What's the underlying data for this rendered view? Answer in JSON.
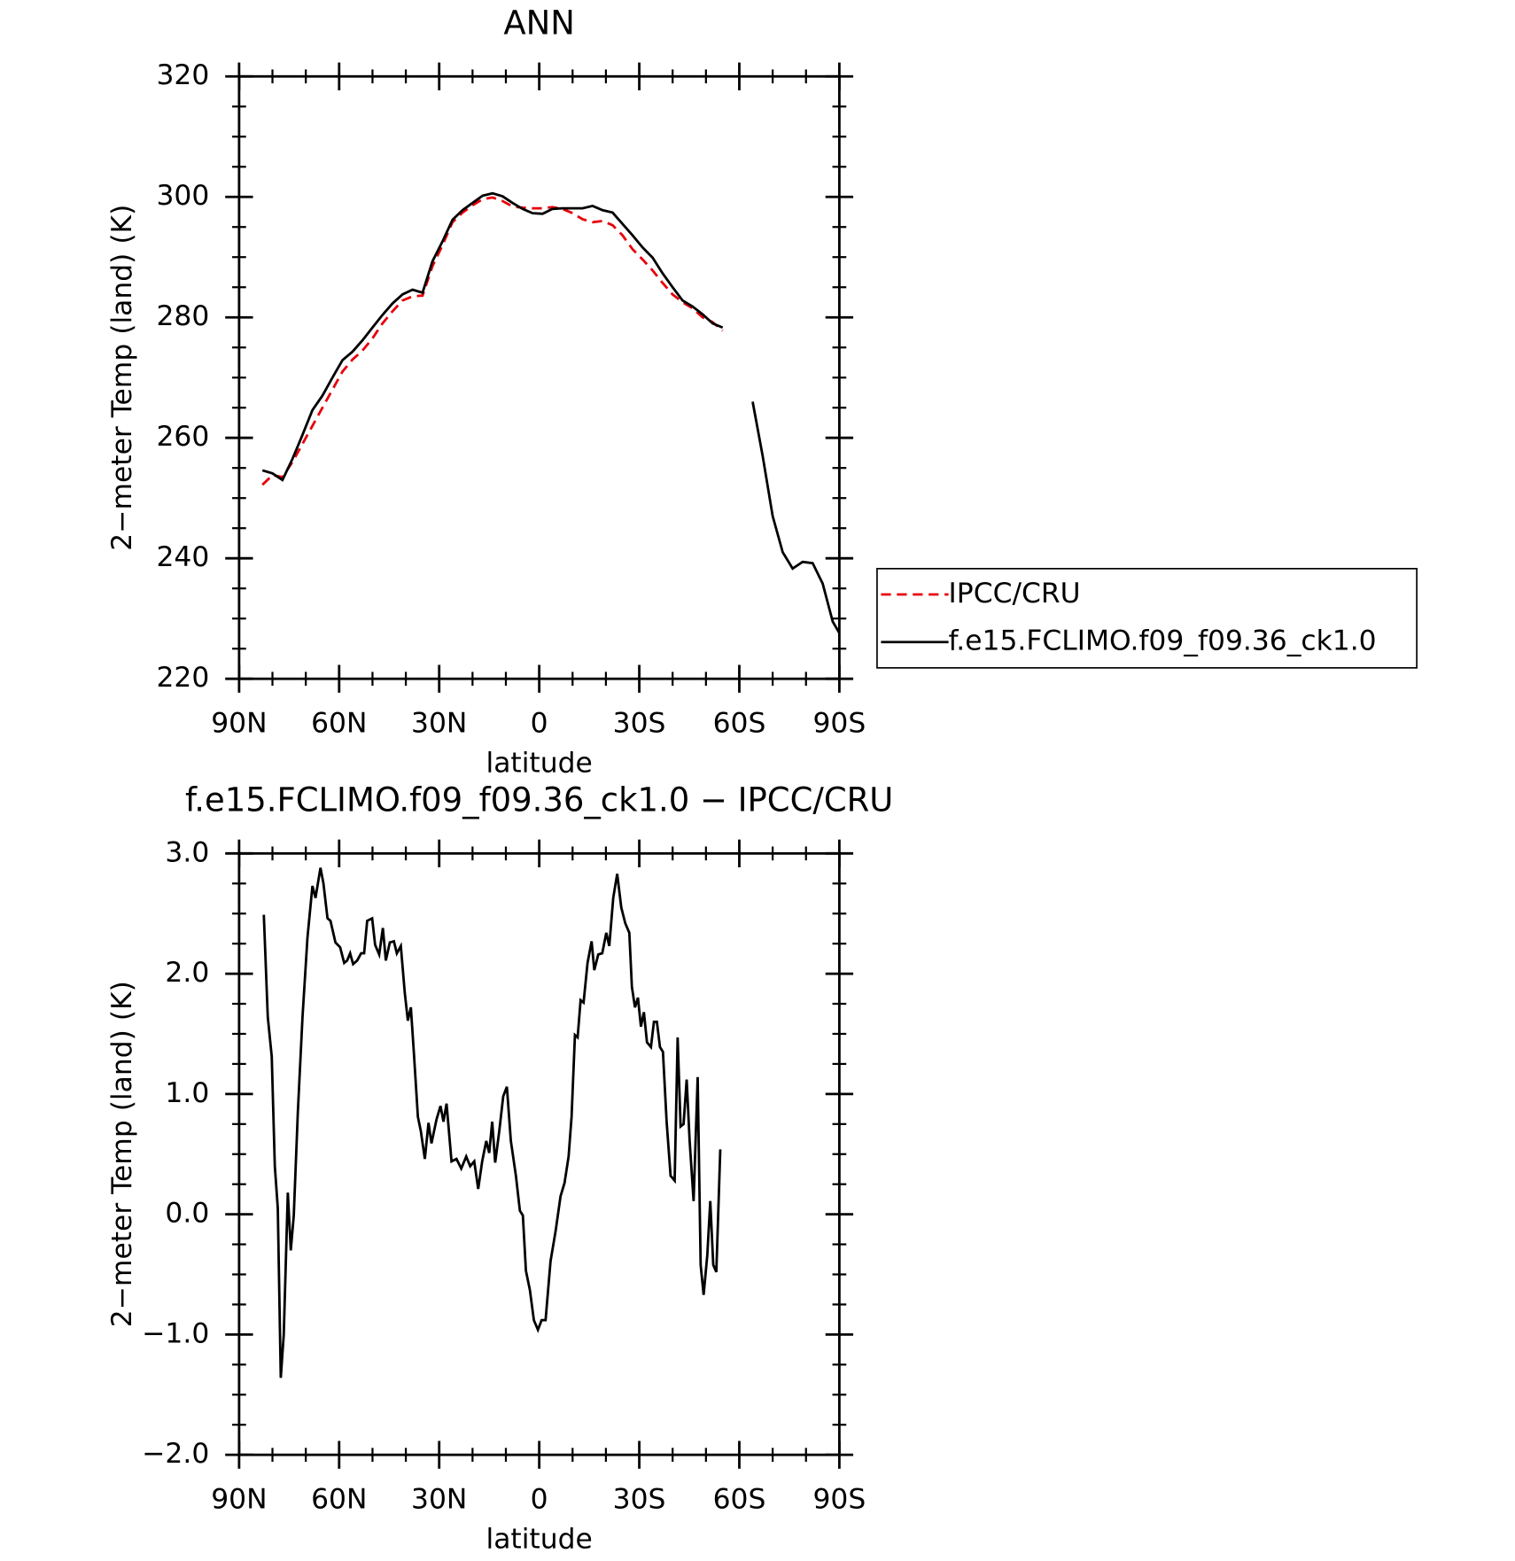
{
  "chart_data": [
    {
      "type": "line",
      "title": "ANN",
      "xlabel": "latitude",
      "ylabel": "2−meter Temp (land) (K)",
      "xlim": [
        90,
        -90
      ],
      "xticks": [
        {
          "value": 90,
          "label": "90N"
        },
        {
          "value": 60,
          "label": "60N"
        },
        {
          "value": 30,
          "label": "30N"
        },
        0,
        {
          "value": -30,
          "label": "30S"
        },
        {
          "value": -60,
          "label": "60S"
        },
        {
          "value": -90,
          "label": "90S"
        }
      ],
      "ylim": [
        220,
        320
      ],
      "yticks": [
        220,
        240,
        260,
        280,
        300,
        320
      ],
      "legend": "right",
      "x": [
        83,
        80,
        77,
        74,
        71,
        68,
        65,
        62,
        59,
        56,
        53,
        50,
        47,
        44,
        41,
        38,
        35,
        32,
        29,
        26,
        23,
        20,
        17,
        14,
        11,
        8,
        5,
        2,
        -1,
        -4,
        -7,
        -10,
        -13,
        -16,
        -19,
        -22,
        -25,
        -28,
        -31,
        -34,
        -37,
        -40,
        -43,
        -46,
        -49,
        -52,
        -55,
        -58,
        -61,
        -64,
        -67,
        -70,
        -73,
        -76,
        -79,
        -82,
        -85,
        -88,
        -90
      ],
      "series": [
        {
          "name": "IPCC/CRU",
          "color": "#e8000b",
          "line_style": "dashed",
          "values": [
            252.2,
            253.8,
            253.5,
            256,
            259,
            262,
            265,
            268,
            271,
            273,
            274.5,
            276.5,
            279,
            281,
            282.8,
            283.5,
            283.6,
            288.5,
            292,
            295.8,
            297.4,
            298.6,
            299.6,
            299.9,
            299.3,
            298.4,
            298.2,
            298.1,
            298.1,
            298.3,
            298,
            297.3,
            296.3,
            295.8,
            296,
            295.3,
            293.6,
            291.3,
            289.6,
            287.8,
            285.7,
            283.8,
            282.5,
            281.5,
            280,
            279.2,
            277.8,
            null,
            null,
            null,
            null,
            null,
            null,
            null,
            null,
            null,
            null,
            null,
            null
          ]
        },
        {
          "name": "f.e15.FCLIMO.f09_f09.36_ck1.0",
          "color": "#000000",
          "line_style": "solid",
          "values": [
            254.6,
            254.1,
            253,
            256.5,
            260.5,
            264.6,
            267,
            270,
            272.9,
            274.3,
            276.2,
            278.3,
            280.4,
            282.3,
            283.8,
            284.6,
            284.1,
            289.3,
            292.6,
            296.2,
            297.8,
            299,
            300.2,
            300.6,
            300.1,
            299,
            298,
            297.3,
            297.2,
            298,
            298.1,
            298.1,
            298.1,
            298.5,
            297.8,
            297.4,
            295.5,
            293.6,
            291.6,
            289.9,
            287.3,
            285,
            282.8,
            281.8,
            280.5,
            279,
            278.3,
            null,
            null,
            266,
            257,
            247,
            241,
            238.3,
            239.4,
            239.2,
            235.8,
            229.5,
            227.6
          ]
        }
      ]
    },
    {
      "type": "line",
      "title": "f.e15.FCLIMO.f09_f09.36_ck1.0 − IPCC/CRU",
      "xlabel": "latitude",
      "ylabel": "2−meter Temp (land) (K)",
      "xlim": [
        90,
        -90
      ],
      "xticks": [
        {
          "value": 90,
          "label": "90N"
        },
        {
          "value": 60,
          "label": "60N"
        },
        {
          "value": 30,
          "label": "30N"
        },
        0,
        {
          "value": -30,
          "label": "30S"
        },
        {
          "value": -60,
          "label": "60S"
        },
        {
          "value": -90,
          "label": "90S"
        }
      ],
      "ylim": [
        -2,
        3
      ],
      "yticks": [
        {
          "value": -2,
          "label": "−2.0"
        },
        {
          "value": -1,
          "label": "−1.0"
        },
        {
          "value": 0,
          "label": "0.0"
        },
        {
          "value": 1,
          "label": "1.0"
        },
        {
          "value": 2,
          "label": "2.0"
        },
        {
          "value": 3,
          "label": "3.0"
        }
      ],
      "x": [
        82.6,
        81.4,
        80.2,
        79.3,
        78.4,
        77.5,
        76.6,
        75.4,
        74.5,
        73.6,
        72.4,
        71,
        69.5,
        68,
        67.1,
        65.6,
        64.7,
        63.5,
        62.6,
        61.1,
        59.7,
        58.5,
        57.6,
        56.7,
        55.8,
        54.6,
        53.4,
        52.5,
        51.6,
        50.1,
        49.2,
        48,
        46.9,
        46,
        44.8,
        43.6,
        42.7,
        41.5,
        40.3,
        39.4,
        38.5,
        37.6,
        36.4,
        35.5,
        34.3,
        33.2,
        32.3,
        30.8,
        29.6,
        28.7,
        27.8,
        26.3,
        24.8,
        23.4,
        21.9,
        20.7,
        19.5,
        18.3,
        17.1,
        15.9,
        15,
        14.1,
        13.2,
        12,
        10.8,
        9.7,
        8.5,
        7,
        5.8,
        4.9,
        4,
        2.8,
        1.6,
        0.4,
        -0.7,
        -1.9,
        -3.4,
        -4.9,
        -6.4,
        -7.6,
        -8.8,
        -9.7,
        -10.7,
        -11.5,
        -12.4,
        -13.3,
        -14.5,
        -15.7,
        -16.5,
        -17.7,
        -18.9,
        -20.1,
        -21,
        -22.2,
        -23.4,
        -24.6,
        -25.8,
        -27,
        -27.8,
        -28.7,
        -29.6,
        -30.5,
        -31.4,
        -32.3,
        -33.5,
        -34.4,
        -35.3,
        -36.2,
        -37.1,
        -38.2,
        -39.4,
        -40.6,
        -41.5,
        -42.4,
        -43.3,
        -44.2,
        -45.1,
        -46.3,
        -47.5,
        -48.4,
        -49.3,
        -50.4,
        -51.3,
        -52.2,
        -53.1,
        -54.3
      ],
      "series": [
        {
          "color": "#000000",
          "line_style": "solid",
          "values": [
            2.49,
            1.64,
            1.31,
            0.4,
            0.05,
            -1.36,
            -1,
            0.18,
            -0.3,
            -0.01,
            0.85,
            1.64,
            2.3,
            2.73,
            2.63,
            2.88,
            2.75,
            2.46,
            2.44,
            2.26,
            2.22,
            2.09,
            2.11,
            2.17,
            2.08,
            2.11,
            2.17,
            2.17,
            2.44,
            2.46,
            2.24,
            2.16,
            2.38,
            2.11,
            2.26,
            2.27,
            2.17,
            2.23,
            1.84,
            1.61,
            1.72,
            1.35,
            0.81,
            0.69,
            0.46,
            0.76,
            0.59,
            0.79,
            0.9,
            0.77,
            0.92,
            0.44,
            0.46,
            0.38,
            0.48,
            0.4,
            0.44,
            0.21,
            0.44,
            0.61,
            0.51,
            0.77,
            0.43,
            0.69,
            0.98,
            1.06,
            0.61,
            0.32,
            0.03,
            -0.01,
            -0.47,
            -0.63,
            -0.88,
            -0.96,
            -0.88,
            -0.88,
            -0.39,
            -0.14,
            0.15,
            0.26,
            0.48,
            0.81,
            1.49,
            1.47,
            1.78,
            1.76,
            2.09,
            2.27,
            2.03,
            2.16,
            2.17,
            2.34,
            2.23,
            2.63,
            2.83,
            2.55,
            2.42,
            2.34,
            1.89,
            1.72,
            1.8,
            1.56,
            1.68,
            1.43,
            1.39,
            1.6,
            1.6,
            1.39,
            1.35,
            0.77,
            0.32,
            0.28,
            1.47,
            0.73,
            0.75,
            1.12,
            0.61,
            0.11,
            1.14,
            -0.42,
            -0.67,
            -0.34,
            0.11,
            -0.42,
            -0.48,
            0.54
          ]
        }
      ]
    }
  ]
}
